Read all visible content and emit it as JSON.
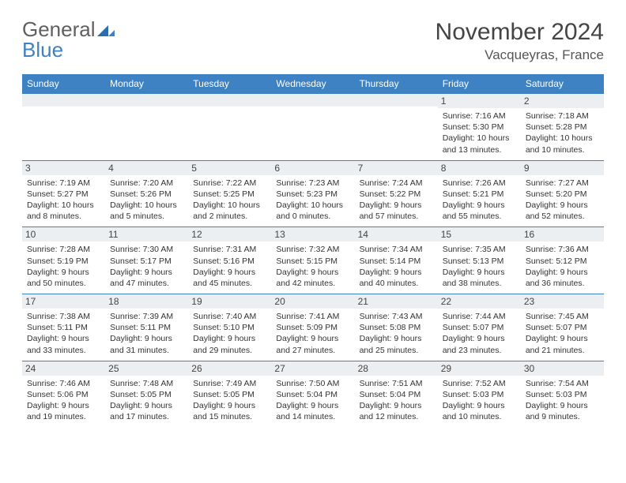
{
  "brand": {
    "word1": "General",
    "word2": "Blue",
    "word1_color": "#606060",
    "word2_color": "#3e82c4",
    "mark_color": "#2a6db0"
  },
  "title": "November 2024",
  "location": "Vacqueyras, France",
  "theme": {
    "header_bg": "#3e82c4",
    "header_text": "#ffffff",
    "daynum_bg": "#eceff1",
    "cell_border": "#3e82c4",
    "page_bg": "#ffffff"
  },
  "day_headers": [
    "Sunday",
    "Monday",
    "Tuesday",
    "Wednesday",
    "Thursday",
    "Friday",
    "Saturday"
  ],
  "weeks": [
    [
      {
        "n": "",
        "sunrise": "",
        "sunset": "",
        "daylight": ""
      },
      {
        "n": "",
        "sunrise": "",
        "sunset": "",
        "daylight": ""
      },
      {
        "n": "",
        "sunrise": "",
        "sunset": "",
        "daylight": ""
      },
      {
        "n": "",
        "sunrise": "",
        "sunset": "",
        "daylight": ""
      },
      {
        "n": "",
        "sunrise": "",
        "sunset": "",
        "daylight": ""
      },
      {
        "n": "1",
        "sunrise": "Sunrise: 7:16 AM",
        "sunset": "Sunset: 5:30 PM",
        "daylight": "Daylight: 10 hours and 13 minutes."
      },
      {
        "n": "2",
        "sunrise": "Sunrise: 7:18 AM",
        "sunset": "Sunset: 5:28 PM",
        "daylight": "Daylight: 10 hours and 10 minutes."
      }
    ],
    [
      {
        "n": "3",
        "sunrise": "Sunrise: 7:19 AM",
        "sunset": "Sunset: 5:27 PM",
        "daylight": "Daylight: 10 hours and 8 minutes."
      },
      {
        "n": "4",
        "sunrise": "Sunrise: 7:20 AM",
        "sunset": "Sunset: 5:26 PM",
        "daylight": "Daylight: 10 hours and 5 minutes."
      },
      {
        "n": "5",
        "sunrise": "Sunrise: 7:22 AM",
        "sunset": "Sunset: 5:25 PM",
        "daylight": "Daylight: 10 hours and 2 minutes."
      },
      {
        "n": "6",
        "sunrise": "Sunrise: 7:23 AM",
        "sunset": "Sunset: 5:23 PM",
        "daylight": "Daylight: 10 hours and 0 minutes."
      },
      {
        "n": "7",
        "sunrise": "Sunrise: 7:24 AM",
        "sunset": "Sunset: 5:22 PM",
        "daylight": "Daylight: 9 hours and 57 minutes."
      },
      {
        "n": "8",
        "sunrise": "Sunrise: 7:26 AM",
        "sunset": "Sunset: 5:21 PM",
        "daylight": "Daylight: 9 hours and 55 minutes."
      },
      {
        "n": "9",
        "sunrise": "Sunrise: 7:27 AM",
        "sunset": "Sunset: 5:20 PM",
        "daylight": "Daylight: 9 hours and 52 minutes."
      }
    ],
    [
      {
        "n": "10",
        "sunrise": "Sunrise: 7:28 AM",
        "sunset": "Sunset: 5:19 PM",
        "daylight": "Daylight: 9 hours and 50 minutes."
      },
      {
        "n": "11",
        "sunrise": "Sunrise: 7:30 AM",
        "sunset": "Sunset: 5:17 PM",
        "daylight": "Daylight: 9 hours and 47 minutes."
      },
      {
        "n": "12",
        "sunrise": "Sunrise: 7:31 AM",
        "sunset": "Sunset: 5:16 PM",
        "daylight": "Daylight: 9 hours and 45 minutes."
      },
      {
        "n": "13",
        "sunrise": "Sunrise: 7:32 AM",
        "sunset": "Sunset: 5:15 PM",
        "daylight": "Daylight: 9 hours and 42 minutes."
      },
      {
        "n": "14",
        "sunrise": "Sunrise: 7:34 AM",
        "sunset": "Sunset: 5:14 PM",
        "daylight": "Daylight: 9 hours and 40 minutes."
      },
      {
        "n": "15",
        "sunrise": "Sunrise: 7:35 AM",
        "sunset": "Sunset: 5:13 PM",
        "daylight": "Daylight: 9 hours and 38 minutes."
      },
      {
        "n": "16",
        "sunrise": "Sunrise: 7:36 AM",
        "sunset": "Sunset: 5:12 PM",
        "daylight": "Daylight: 9 hours and 36 minutes."
      }
    ],
    [
      {
        "n": "17",
        "sunrise": "Sunrise: 7:38 AM",
        "sunset": "Sunset: 5:11 PM",
        "daylight": "Daylight: 9 hours and 33 minutes."
      },
      {
        "n": "18",
        "sunrise": "Sunrise: 7:39 AM",
        "sunset": "Sunset: 5:11 PM",
        "daylight": "Daylight: 9 hours and 31 minutes."
      },
      {
        "n": "19",
        "sunrise": "Sunrise: 7:40 AM",
        "sunset": "Sunset: 5:10 PM",
        "daylight": "Daylight: 9 hours and 29 minutes."
      },
      {
        "n": "20",
        "sunrise": "Sunrise: 7:41 AM",
        "sunset": "Sunset: 5:09 PM",
        "daylight": "Daylight: 9 hours and 27 minutes."
      },
      {
        "n": "21",
        "sunrise": "Sunrise: 7:43 AM",
        "sunset": "Sunset: 5:08 PM",
        "daylight": "Daylight: 9 hours and 25 minutes."
      },
      {
        "n": "22",
        "sunrise": "Sunrise: 7:44 AM",
        "sunset": "Sunset: 5:07 PM",
        "daylight": "Daylight: 9 hours and 23 minutes."
      },
      {
        "n": "23",
        "sunrise": "Sunrise: 7:45 AM",
        "sunset": "Sunset: 5:07 PM",
        "daylight": "Daylight: 9 hours and 21 minutes."
      }
    ],
    [
      {
        "n": "24",
        "sunrise": "Sunrise: 7:46 AM",
        "sunset": "Sunset: 5:06 PM",
        "daylight": "Daylight: 9 hours and 19 minutes."
      },
      {
        "n": "25",
        "sunrise": "Sunrise: 7:48 AM",
        "sunset": "Sunset: 5:05 PM",
        "daylight": "Daylight: 9 hours and 17 minutes."
      },
      {
        "n": "26",
        "sunrise": "Sunrise: 7:49 AM",
        "sunset": "Sunset: 5:05 PM",
        "daylight": "Daylight: 9 hours and 15 minutes."
      },
      {
        "n": "27",
        "sunrise": "Sunrise: 7:50 AM",
        "sunset": "Sunset: 5:04 PM",
        "daylight": "Daylight: 9 hours and 14 minutes."
      },
      {
        "n": "28",
        "sunrise": "Sunrise: 7:51 AM",
        "sunset": "Sunset: 5:04 PM",
        "daylight": "Daylight: 9 hours and 12 minutes."
      },
      {
        "n": "29",
        "sunrise": "Sunrise: 7:52 AM",
        "sunset": "Sunset: 5:03 PM",
        "daylight": "Daylight: 9 hours and 10 minutes."
      },
      {
        "n": "30",
        "sunrise": "Sunrise: 7:54 AM",
        "sunset": "Sunset: 5:03 PM",
        "daylight": "Daylight: 9 hours and 9 minutes."
      }
    ]
  ]
}
